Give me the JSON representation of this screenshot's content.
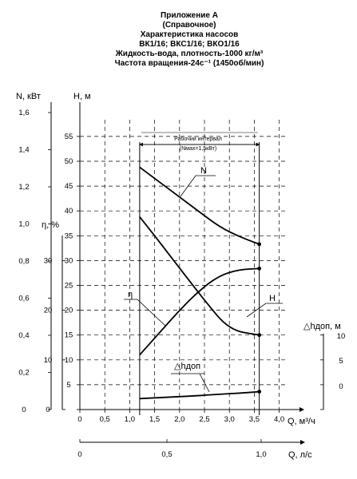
{
  "header": {
    "lines": [
      "Приложение А",
      "(Справочное)",
      "Характеристика насосов",
      "ВК1/16; ВКС1/16; ВКО1/16",
      "Жидкость-вода, плотность-1000 кг/м³",
      "Частота вращения-24с⁻¹ (1450об/мин)"
    ]
  },
  "chart_data": {
    "type": "line",
    "grid": true,
    "axes": {
      "x_q": {
        "label": "Q, м³/ч",
        "range": [
          0,
          4.4
        ],
        "ticks": [
          "0",
          "0,5",
          "1,0",
          "1,5",
          "2,0",
          "2,5",
          "3,0",
          "3,5",
          "4,0"
        ]
      },
      "x_ls": {
        "label": "Q, л/с",
        "range": [
          0,
          1.22
        ],
        "ticks": [
          "0",
          "0,5",
          "1,0"
        ]
      },
      "y_h": {
        "label": "H, м",
        "range": [
          0,
          55
        ],
        "ticks": [
          "0",
          "5",
          "10",
          "15",
          "20",
          "25",
          "30",
          "35",
          "40",
          "45",
          "50",
          "55"
        ]
      },
      "y_n": {
        "label": "N, кВт",
        "range": [
          0,
          1.6
        ],
        "ticks": [
          "0",
          "0,2",
          "0,4",
          "0,6",
          "0,8",
          "1,0",
          "1,2",
          "1,4",
          "1,6"
        ]
      },
      "y_eta": {
        "label": "η, %",
        "range": [
          0,
          40
        ],
        "ticks": [
          "0",
          "10",
          "20",
          "30"
        ]
      },
      "y_dh": {
        "label": "△hдоп, м",
        "range": [
          0,
          15
        ],
        "ticks": [
          "0",
          "5",
          "10"
        ]
      }
    },
    "interval": {
      "label": "Рабочий интервал",
      "note": "(Nмах=1,5кВт)",
      "q_range": [
        1.2,
        3.6
      ]
    },
    "series": [
      {
        "name": "H",
        "axis": "y_h",
        "x": [
          1.2,
          1.5,
          2.0,
          2.5,
          3.0,
          3.6
        ],
        "y": [
          38.8,
          35.0,
          28.5,
          22.0,
          16.0,
          15.0
        ]
      },
      {
        "name": "N",
        "axis": "y_h",
        "x": [
          1.2,
          1.6,
          2.0,
          2.4,
          2.8,
          3.2,
          3.6
        ],
        "y": [
          48.8,
          45.8,
          42.8,
          39.8,
          36.8,
          34.8,
          33.3
        ]
      },
      {
        "name": "η",
        "axis": "y_h",
        "x": [
          1.2,
          1.6,
          2.0,
          2.4,
          2.8,
          3.2,
          3.6
        ],
        "y": [
          11.0,
          15.5,
          20.0,
          24.0,
          27.0,
          28.2,
          28.4
        ]
      },
      {
        "name": "△hдоп",
        "axis": "y_h",
        "x": [
          1.2,
          1.6,
          2.0,
          2.4,
          2.8,
          3.2,
          3.6
        ],
        "y": [
          2.2,
          2.4,
          2.6,
          2.8,
          3.1,
          3.3,
          3.6
        ]
      }
    ],
    "curve_labels": [
      "N",
      "η",
      "H",
      "△hдоп"
    ]
  },
  "colors": {
    "line": "#000000",
    "grid": "#000000",
    "background": "#ffffff"
  }
}
